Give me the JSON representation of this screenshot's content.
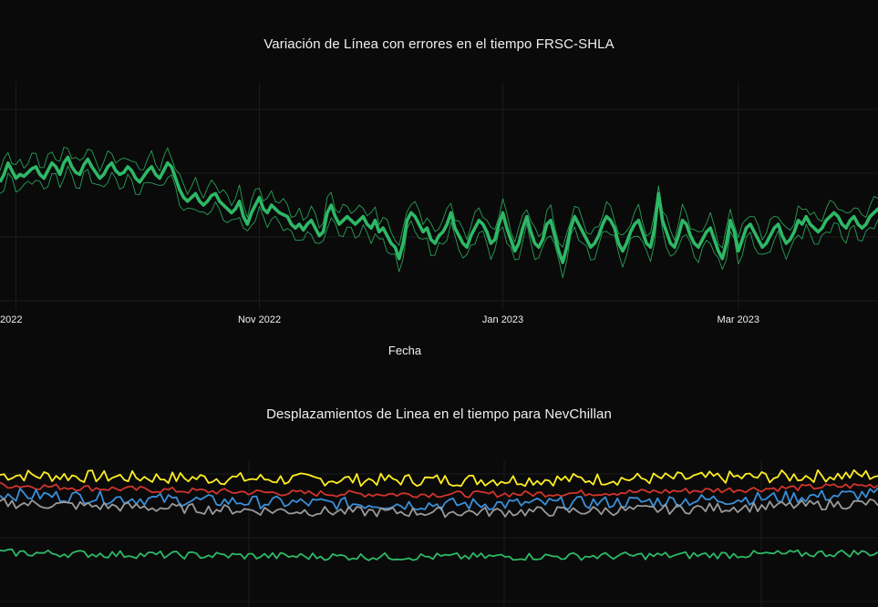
{
  "chart_data": [
    {
      "type": "line",
      "title": "Variación de Línea con errores en el tiempo FRSC-SHLA",
      "xlabel": "Fecha",
      "ylabel": "",
      "x_ticks": [
        "2022",
        "Nov 2022",
        "Jan 2023",
        "Mar 2023"
      ],
      "x_tick_dates": [
        "2022-09-01",
        "2022-11-01",
        "2023-01-01",
        "2023-03-01"
      ],
      "x_range": [
        "2022-08-28",
        "2023-04-05"
      ],
      "y_range": [
        0,
        100
      ],
      "grid": true,
      "colors": {
        "main": "#2eb865",
        "band": "#2eb865",
        "grid": "#1e1e1e"
      },
      "series": [
        {
          "role": "main",
          "x_start": "2022-08-28",
          "x_step_days": 1,
          "values": [
            62,
            66,
            72,
            68,
            64,
            66,
            65,
            67,
            69,
            70,
            66,
            64,
            68,
            72,
            70,
            66,
            72,
            75,
            70,
            67,
            66,
            71,
            74,
            70,
            67,
            64,
            66,
            70,
            72,
            68,
            66,
            67,
            70,
            68,
            64,
            62,
            65,
            68,
            70,
            66,
            64,
            68,
            72,
            70,
            64,
            58,
            54,
            52,
            54,
            56,
            52,
            50,
            52,
            55,
            56,
            52,
            50,
            48,
            46,
            48,
            52,
            44,
            40,
            46,
            50,
            54,
            48,
            46,
            50,
            48,
            46,
            45,
            44,
            40,
            38,
            40,
            37,
            40,
            42,
            38,
            34,
            36,
            46,
            50,
            44,
            40,
            42,
            44,
            42,
            40,
            42,
            44,
            40,
            38,
            42,
            36,
            38,
            34,
            30,
            28,
            22,
            30,
            42,
            46,
            44,
            40,
            36,
            38,
            32,
            30,
            34,
            36,
            40,
            46,
            38,
            34,
            30,
            28,
            34,
            38,
            42,
            40,
            36,
            30,
            32,
            40,
            46,
            38,
            32,
            26,
            30,
            38,
            44,
            36,
            30,
            28,
            32,
            40,
            42,
            34,
            26,
            20,
            28,
            38,
            44,
            40,
            36,
            32,
            28,
            30,
            34,
            40,
            44,
            42,
            38,
            30,
            26,
            30,
            36,
            40,
            42,
            36,
            30,
            28,
            38,
            56,
            42,
            36,
            30,
            28,
            34,
            42,
            40,
            34,
            30,
            28,
            32,
            36,
            38,
            32,
            26,
            22,
            30,
            42,
            36,
            26,
            32,
            38,
            40,
            36,
            32,
            28,
            30,
            34,
            38,
            40,
            34,
            30,
            32,
            36,
            42,
            40,
            44,
            40,
            38,
            36,
            38,
            42,
            44,
            46,
            44,
            40,
            38,
            42,
            44,
            40,
            38,
            40,
            44,
            46,
            48,
            44,
            50,
            70,
            62,
            50,
            46,
            42,
            44,
            40,
            36,
            78,
            58,
            46,
            40,
            42,
            36,
            38,
            40,
            44
          ]
        },
        {
          "role": "upper",
          "offset": 6
        },
        {
          "role": "lower",
          "offset": -6
        }
      ]
    },
    {
      "type": "line",
      "title": "Desplazamientos de Linea en el tiempo para NevChillan",
      "xlabel": "",
      "ylabel": "",
      "x_range": [
        "2022-08-28",
        "2023-04-05"
      ],
      "y_range": [
        0,
        100
      ],
      "grid": true,
      "series": [
        {
          "color": "#ffee22",
          "base": 85,
          "trend": -5,
          "noise": 5
        },
        {
          "color": "#d0342c",
          "base": 77,
          "trend": -9,
          "noise": 2.5
        },
        {
          "color": "#3a8fd8",
          "base": 70,
          "trend": -10,
          "noise": 5
        },
        {
          "color": "#9a9a9a",
          "base": 63,
          "trend": -9,
          "noise": 4
        },
        {
          "color": "#2eb865",
          "base": 24,
          "trend": -4,
          "noise": 3
        }
      ]
    }
  ]
}
